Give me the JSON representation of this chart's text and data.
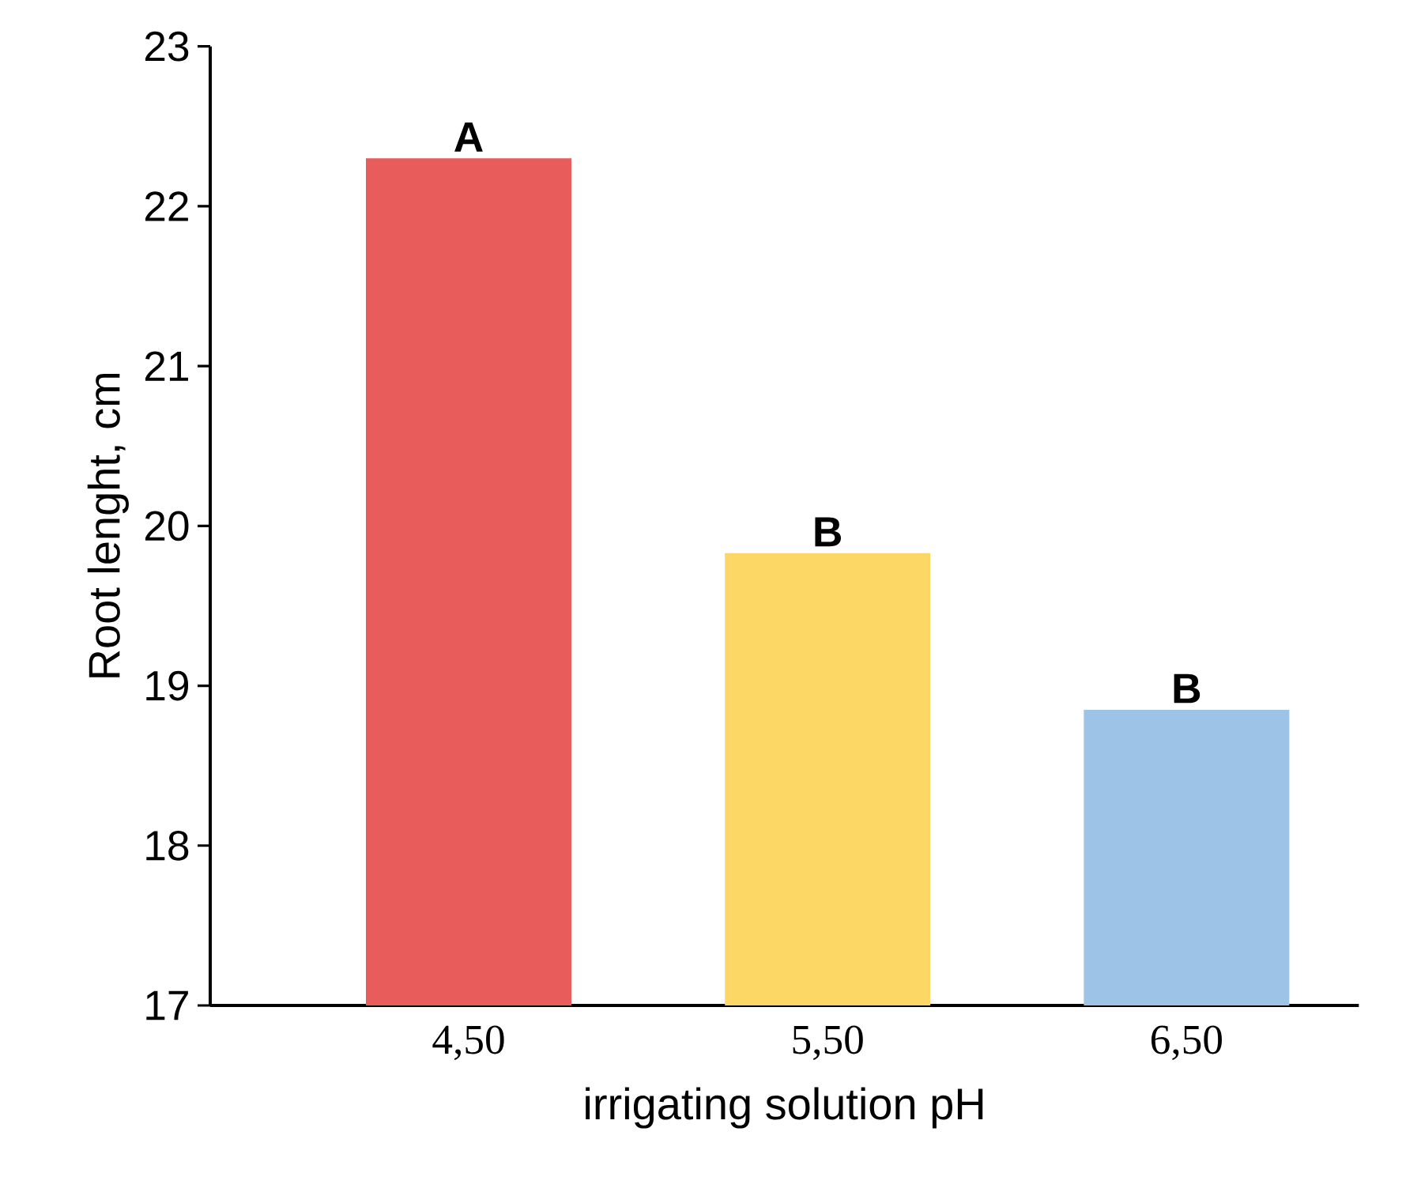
{
  "chart_data": {
    "type": "bar",
    "xlabel": "irrigating solution pH",
    "ylabel": "Root lenght, cm",
    "categories": [
      "4,50",
      "5,50",
      "6,50"
    ],
    "values": [
      22.3,
      19.83,
      18.85
    ],
    "colors": [
      "#e85c5c",
      "#fdd766",
      "#9dc3e6"
    ],
    "ylim": [
      17,
      23
    ],
    "yticks": [
      17,
      18,
      19,
      20,
      21,
      22,
      23
    ],
    "annotations": [
      {
        "text": "A",
        "x": "4,50",
        "y": 22.3
      },
      {
        "text": "B",
        "x": "5,50",
        "y": 19.83
      },
      {
        "text": "B",
        "x": "6,50",
        "y": 18.85
      }
    ]
  }
}
